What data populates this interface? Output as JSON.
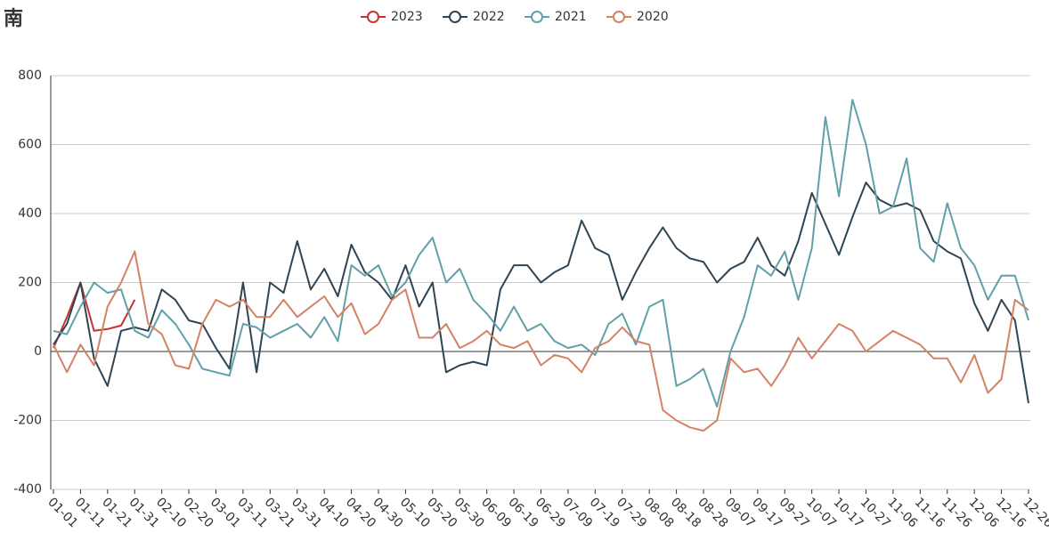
{
  "chart_data": {
    "type": "line",
    "title": "南",
    "categories": [
      "01-01",
      null,
      "01-11",
      null,
      "01-21",
      null,
      "01-31",
      null,
      "02-10",
      null,
      "02-20",
      null,
      "03-01",
      null,
      "03-11",
      null,
      "03-21",
      null,
      "03-31",
      null,
      "04-10",
      null,
      "04-20",
      null,
      "04-30",
      null,
      "05-10",
      null,
      "05-20",
      null,
      "05-30",
      null,
      "06-09",
      null,
      "06-19",
      null,
      "06-29",
      null,
      "07-09",
      null,
      "07-19",
      null,
      "07-29",
      null,
      "08-08",
      null,
      "08-18",
      null,
      "08-28",
      null,
      "09-07",
      null,
      "09-17",
      null,
      "09-27",
      null,
      "10-07",
      null,
      "10-17",
      null,
      "10-27",
      null,
      "11-06",
      null,
      "11-16",
      null,
      "11-26",
      null,
      "12-06",
      null,
      "12-16",
      null,
      "12-26"
    ],
    "series": [
      {
        "name": "2023",
        "color": "#c23531",
        "values": [
          10,
          100,
          200,
          60,
          65,
          75,
          150,
          null,
          null,
          null,
          null,
          null,
          null,
          null,
          null,
          null,
          null,
          null,
          null,
          null,
          null,
          null,
          null,
          null,
          null,
          null,
          null,
          null,
          null,
          null,
          null,
          null,
          null,
          null,
          null,
          null,
          null,
          null,
          null,
          null,
          null,
          null,
          null,
          null,
          null,
          null,
          null,
          null,
          null,
          null,
          null,
          null,
          null,
          null,
          null,
          null,
          null,
          null,
          null,
          null,
          null,
          null,
          null,
          null,
          null,
          null,
          null,
          null,
          null,
          null,
          null,
          null,
          null
        ]
      },
      {
        "name": "2022",
        "color": "#2f4554",
        "values": [
          20,
          80,
          200,
          -20,
          -100,
          60,
          70,
          60,
          180,
          150,
          90,
          80,
          10,
          -50,
          200,
          -60,
          200,
          170,
          320,
          180,
          240,
          160,
          310,
          230,
          200,
          150,
          250,
          130,
          200,
          -60,
          -40,
          -30,
          -40,
          180,
          250,
          250,
          200,
          230,
          250,
          380,
          300,
          280,
          150,
          230,
          300,
          360,
          300,
          270,
          260,
          200,
          240,
          260,
          330,
          250,
          220,
          320,
          460,
          370,
          280,
          390,
          490,
          440,
          420,
          430,
          410,
          320,
          290,
          270,
          140,
          60,
          150,
          90,
          -150
        ]
      },
      {
        "name": "2021",
        "color": "#61a0a8",
        "values": [
          60,
          50,
          130,
          200,
          170,
          180,
          60,
          40,
          120,
          80,
          20,
          -50,
          -60,
          -70,
          80,
          70,
          40,
          60,
          80,
          40,
          100,
          30,
          250,
          220,
          250,
          160,
          200,
          280,
          330,
          200,
          240,
          150,
          110,
          60,
          130,
          60,
          80,
          30,
          10,
          20,
          -10,
          80,
          110,
          20,
          130,
          150,
          -100,
          -80,
          -50,
          -160,
          0,
          100,
          250,
          220,
          290,
          150,
          300,
          680,
          450,
          730,
          600,
          400,
          420,
          560,
          300,
          260,
          430,
          300,
          250,
          150,
          220,
          220,
          90
        ]
      },
      {
        "name": "2020",
        "color": "#d48265",
        "values": [
          20,
          -60,
          20,
          -40,
          130,
          200,
          290,
          80,
          50,
          -40,
          -50,
          80,
          150,
          130,
          150,
          100,
          100,
          150,
          100,
          130,
          160,
          100,
          140,
          50,
          80,
          150,
          180,
          40,
          40,
          80,
          10,
          30,
          60,
          20,
          10,
          30,
          -40,
          -10,
          -20,
          -60,
          10,
          30,
          70,
          30,
          20,
          -170,
          -200,
          -220,
          -230,
          -200,
          -20,
          -60,
          -50,
          -100,
          -40,
          40,
          -20,
          30,
          80,
          60,
          0,
          30,
          60,
          40,
          20,
          -20,
          -20,
          -90,
          -10,
          -120,
          -80,
          150,
          120
        ]
      }
    ],
    "ylim": [
      -400,
      800
    ],
    "yticks": [
      -400,
      -200,
      0,
      200,
      400,
      600,
      800
    ],
    "grid": true,
    "legend": "top"
  }
}
